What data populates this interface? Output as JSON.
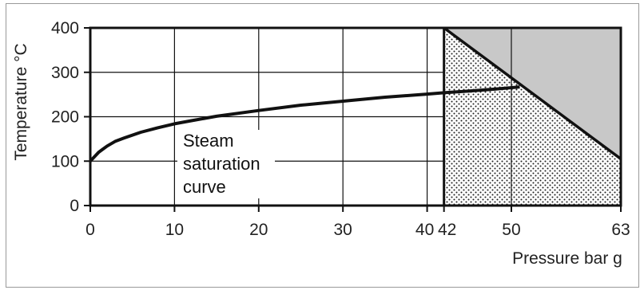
{
  "chart_data": {
    "type": "line",
    "title": "",
    "xlabel": "Pressure bar g",
    "ylabel": "Temperature °C",
    "xlim": [
      0,
      63
    ],
    "ylim": [
      0,
      400
    ],
    "x_ticks": [
      0,
      10,
      20,
      30,
      40,
      42,
      50,
      63
    ],
    "x_tick_labels": [
      "0",
      "10",
      "20",
      "30",
      "40",
      "42",
      "50",
      "63"
    ],
    "y_ticks": [
      0,
      100,
      200,
      300,
      400
    ],
    "y_tick_labels": [
      "0",
      "100",
      "200",
      "300",
      "400"
    ],
    "grid": true,
    "series": [
      {
        "name": "Steam saturation curve",
        "x": [
          0,
          1,
          2,
          3,
          4,
          6,
          8,
          10,
          12,
          15,
          20,
          25,
          30,
          35,
          40,
          42,
          45,
          48,
          51
        ],
        "y": [
          100,
          120,
          134,
          145,
          152,
          165,
          175,
          184,
          191,
          201,
          214,
          226,
          235,
          244,
          251,
          254,
          258,
          262,
          267
        ]
      },
      {
        "name": "",
        "x": [
          42,
          63
        ],
        "y": [
          400,
          105
        ]
      }
    ],
    "regions": [
      {
        "fill": "stippled",
        "x_range": [
          42,
          63
        ],
        "description": "below diagonal boundary"
      },
      {
        "fill": "grey",
        "x_range": [
          42,
          63
        ],
        "description": "above diagonal boundary"
      }
    ],
    "annotations": [
      {
        "lines": [
          "Steam",
          "saturation",
          "curve"
        ]
      }
    ]
  },
  "colors": {
    "grey_region": "#c8c8c8",
    "line": "#111111",
    "grid": "#111111"
  }
}
